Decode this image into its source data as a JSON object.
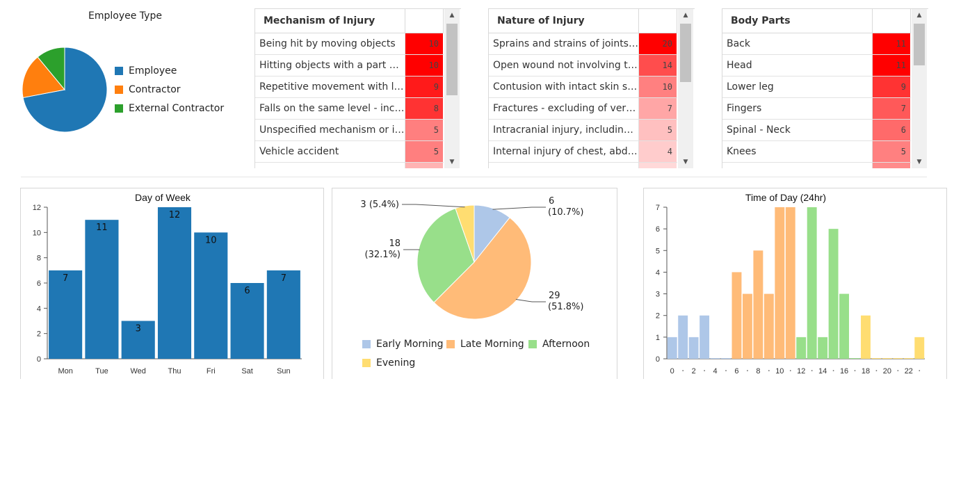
{
  "employee_type": {
    "title": "Employee Type",
    "chart_data": {
      "type": "pie",
      "title": "Employee Type",
      "labels": [
        "Employee",
        "Contractor",
        "External Contractor"
      ],
      "values": [
        72,
        17,
        11
      ],
      "colors": [
        "#1f77b4",
        "#ff7f0e",
        "#2ca02c"
      ],
      "legend": "right"
    }
  },
  "grids": [
    {
      "header": "Mechanism of Injury",
      "rows": [
        {
          "name": "Being hit by moving objects",
          "value": "10",
          "color": "#ff0000"
        },
        {
          "name": "Hitting objects with a part of the body",
          "value": "10",
          "color": "#ff0000"
        },
        {
          "name": "Repetitive movement with low muscle loading",
          "value": "9",
          "color": "#ff1a1a"
        },
        {
          "name": "Falls on the same level - including trips",
          "value": "8",
          "color": "#ff3333"
        },
        {
          "name": "Unspecified mechanism or incident",
          "value": "5",
          "color": "#ff7f7f"
        },
        {
          "name": "Vehicle accident",
          "value": "5",
          "color": "#ff7f7f"
        },
        {
          "name": "",
          "value": "",
          "color": "#ffb3b3"
        }
      ]
    },
    {
      "header": "Nature of Injury",
      "rows": [
        {
          "name": "Sprains and strains of joints and adjacent muscles",
          "value": "20",
          "color": "#ff0000"
        },
        {
          "name": "Open wound not involving traumatic amputation",
          "value": "14",
          "color": "#ff4d4d"
        },
        {
          "name": "Contusion with intact skin surface",
          "value": "10",
          "color": "#ff8080"
        },
        {
          "name": "Fractures - excluding of vertebral column",
          "value": "7",
          "color": "#ffa6a6"
        },
        {
          "name": "Intracranial injury, including concussion",
          "value": "5",
          "color": "#ffc0c0"
        },
        {
          "name": "Internal injury of chest, abdomen and pelvis",
          "value": "4",
          "color": "#ffcccc"
        },
        {
          "name": "",
          "value": "",
          "color": "#ffd9d9"
        }
      ]
    },
    {
      "header": "Body Parts",
      "rows": [
        {
          "name": "Back",
          "value": "11",
          "color": "#ff0000"
        },
        {
          "name": "Head",
          "value": "11",
          "color": "#ff0000"
        },
        {
          "name": "Lower leg",
          "value": "9",
          "color": "#ff3333"
        },
        {
          "name": "Fingers",
          "value": "7",
          "color": "#ff5959"
        },
        {
          "name": "Spinal - Neck",
          "value": "6",
          "color": "#ff6a6a"
        },
        {
          "name": "Knees",
          "value": "5",
          "color": "#ff8080"
        },
        {
          "name": "",
          "value": "",
          "color": "#ff8c8c"
        }
      ]
    }
  ],
  "day_of_week": {
    "chart_data": {
      "type": "bar",
      "title": "Day of Week",
      "categories": [
        "Mon",
        "Tue",
        "Wed",
        "Thu",
        "Fri",
        "Sat",
        "Sun"
      ],
      "values": [
        7,
        11,
        3,
        12,
        10,
        6,
        7
      ],
      "ylim": [
        0,
        12
      ],
      "yticks": [
        0,
        2,
        4,
        6,
        8,
        10,
        12
      ],
      "color": "#1f77b4"
    }
  },
  "time_period": {
    "chart_data": {
      "type": "pie",
      "labels": [
        "Early Morning",
        "Late Morning",
        "Afternoon",
        "Evening"
      ],
      "values": [
        6,
        29,
        18,
        3
      ],
      "value_labels": [
        "6",
        "29",
        "18",
        "3"
      ],
      "percent_labels": [
        "(10.7%)",
        "(51.8%)",
        "(32.1%)",
        "(5.4%)"
      ],
      "colors": [
        "#aec7e8",
        "#ffbb78",
        "#98df8a",
        "#ffdd71"
      ],
      "legend": "bottom"
    }
  },
  "time_of_day": {
    "chart_data": {
      "type": "bar",
      "title": "Time of Day (24hr)",
      "x": [
        0,
        1,
        2,
        3,
        4,
        5,
        6,
        7,
        8,
        9,
        10,
        11,
        12,
        13,
        14,
        15,
        16,
        17,
        18,
        19,
        20,
        21,
        22,
        23
      ],
      "values": [
        1,
        2,
        1,
        2,
        0,
        0,
        4,
        3,
        5,
        3,
        7,
        7,
        1,
        7,
        1,
        6,
        3,
        0,
        2,
        0,
        0,
        0,
        0,
        1
      ],
      "period": [
        "Early Morning",
        "Early Morning",
        "Early Morning",
        "Early Morning",
        "Early Morning",
        "Early Morning",
        "Late Morning",
        "Late Morning",
        "Late Morning",
        "Late Morning",
        "Late Morning",
        "Late Morning",
        "Afternoon",
        "Afternoon",
        "Afternoon",
        "Afternoon",
        "Afternoon",
        "Afternoon",
        "Evening",
        "Evening",
        "Evening",
        "Evening",
        "Evening",
        "Evening"
      ],
      "xticks": [
        "0",
        "2",
        "4",
        "6",
        "8",
        "10",
        "12",
        "14",
        "16",
        "18",
        "20",
        "22"
      ],
      "ylim": [
        0,
        7
      ],
      "yticks": [
        0,
        1,
        2,
        3,
        4,
        5,
        6,
        7
      ]
    }
  }
}
